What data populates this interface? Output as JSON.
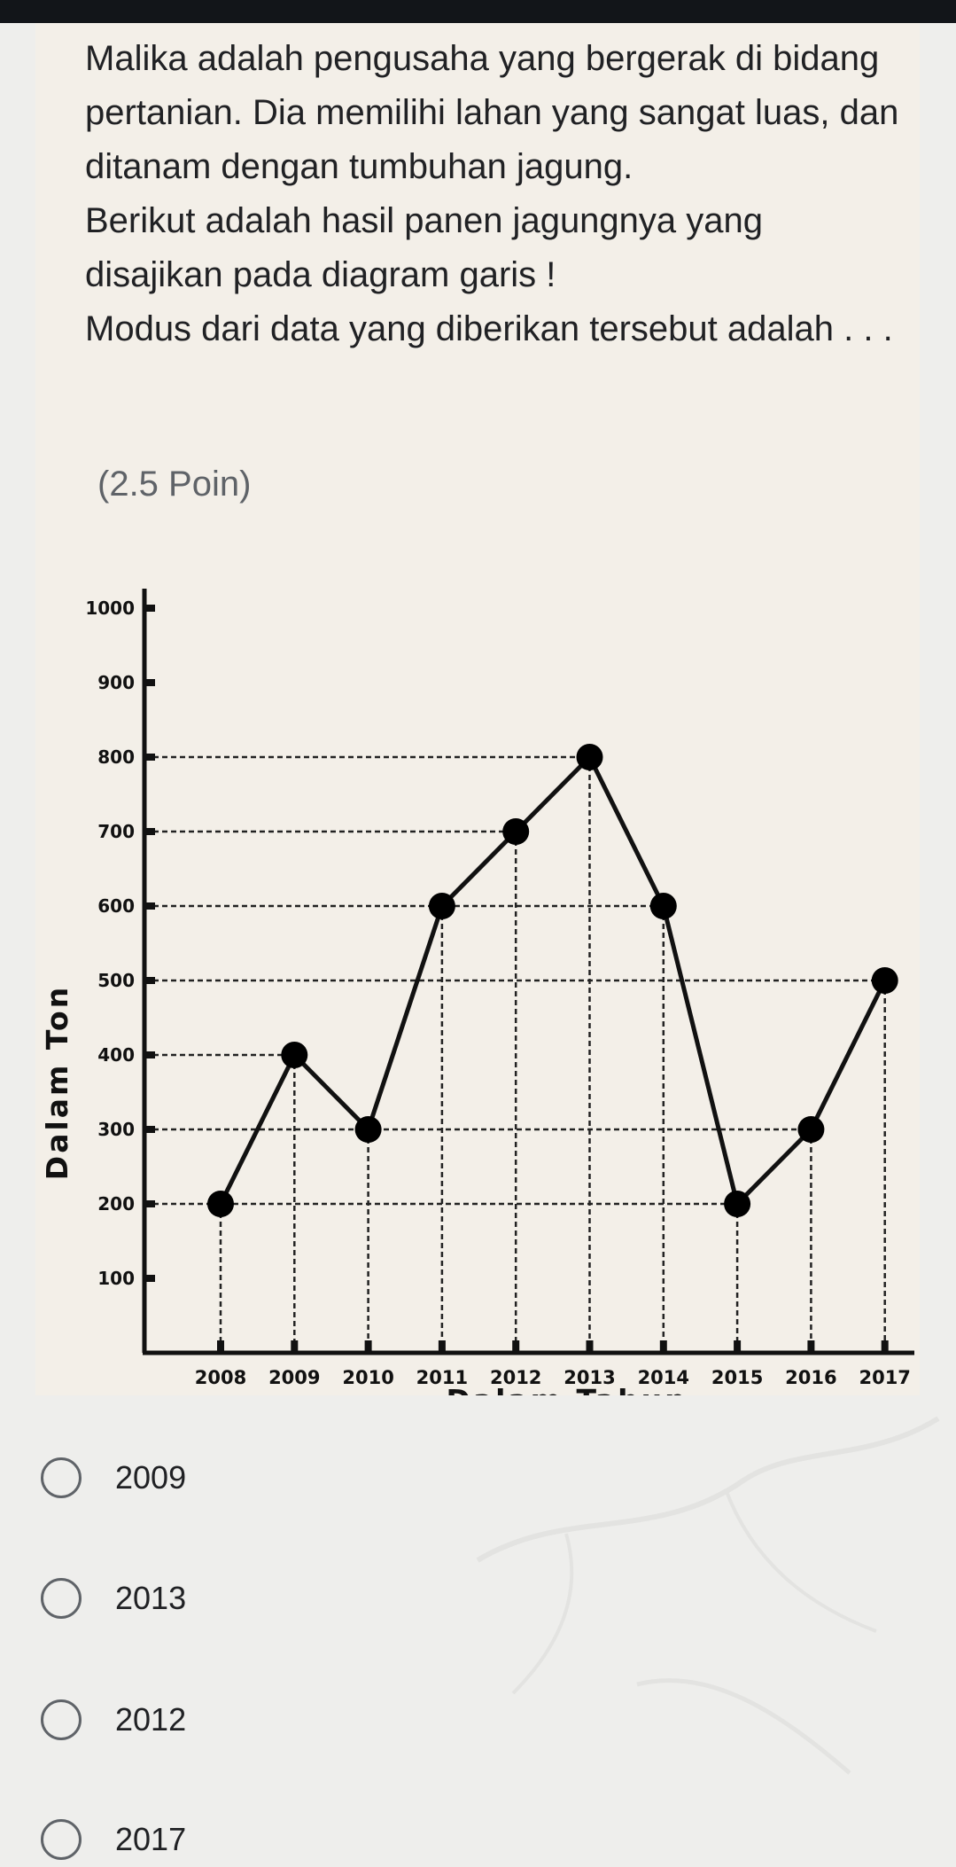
{
  "question": {
    "paragraphs": [
      "Malika adalah pengusaha yang bergerak di bidang pertanian. Dia memilihi lahan yang sangat luas, dan ditanam dengan tumbuhan jagung.",
      "Berikut adalah hasil panen jagungnya yang disajikan pada diagram garis !",
      "Modus dari data yang diberikan tersebut adalah . . ."
    ],
    "points": "(2.5 Poin)"
  },
  "chart_data": {
    "type": "line",
    "x": [
      "2008",
      "2009",
      "2010",
      "2011",
      "2012",
      "2013",
      "2014",
      "2015",
      "2016",
      "2017"
    ],
    "values": [
      200,
      400,
      300,
      600,
      700,
      800,
      600,
      200,
      300,
      500
    ],
    "ylabel": "Dalam Ton",
    "xlabel": "Dalam Tahun",
    "ylim": [
      0,
      1000
    ],
    "yticks": [
      "100",
      "200",
      "300",
      "400",
      "500",
      "600",
      "700",
      "800",
      "900",
      "1000"
    ],
    "grid": "dashed reference lines to each point"
  },
  "options": [
    {
      "label": "2009"
    },
    {
      "label": "2013"
    },
    {
      "label": "2012"
    },
    {
      "label": "2017"
    }
  ],
  "colors": {
    "card_background": "#f3efe8",
    "page_background": "#eeeeec",
    "top_bar": "#121519",
    "text": "#202124",
    "muted_text": "#5f6368"
  }
}
